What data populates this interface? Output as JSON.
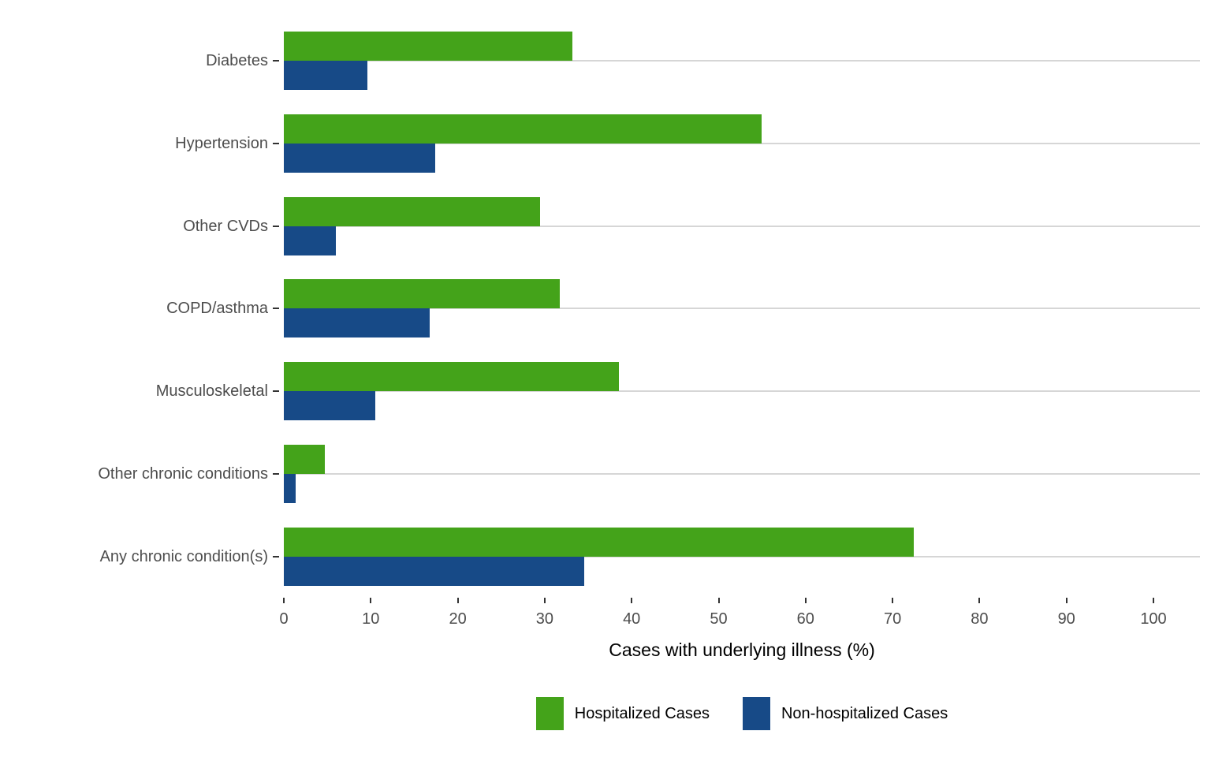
{
  "chart_data": {
    "type": "bar",
    "orientation": "horizontal",
    "title": "",
    "xlabel": "Cases with underlying illness (%)",
    "ylabel": "",
    "xlim": [
      0,
      100
    ],
    "xticks": [
      0,
      10,
      20,
      30,
      40,
      50,
      60,
      70,
      80,
      90,
      100
    ],
    "grid": "horizontal category gridlines only",
    "legend_position": "bottom",
    "categories": [
      "Diabetes",
      "Hypertension",
      "Other CVDs",
      "COPD/asthma",
      "Musculoskeletal",
      "Other chronic conditions",
      "Any chronic condition(s)"
    ],
    "series": [
      {
        "name": "Hospitalized Cases",
        "color": "#44a31a",
        "values": [
          33.2,
          54.9,
          29.5,
          31.7,
          38.5,
          4.7,
          72.4
        ]
      },
      {
        "name": "Non-hospitalized Cases",
        "color": "#174a87",
        "values": [
          9.6,
          17.4,
          6.0,
          16.8,
          10.5,
          1.4,
          34.5
        ]
      }
    ]
  }
}
